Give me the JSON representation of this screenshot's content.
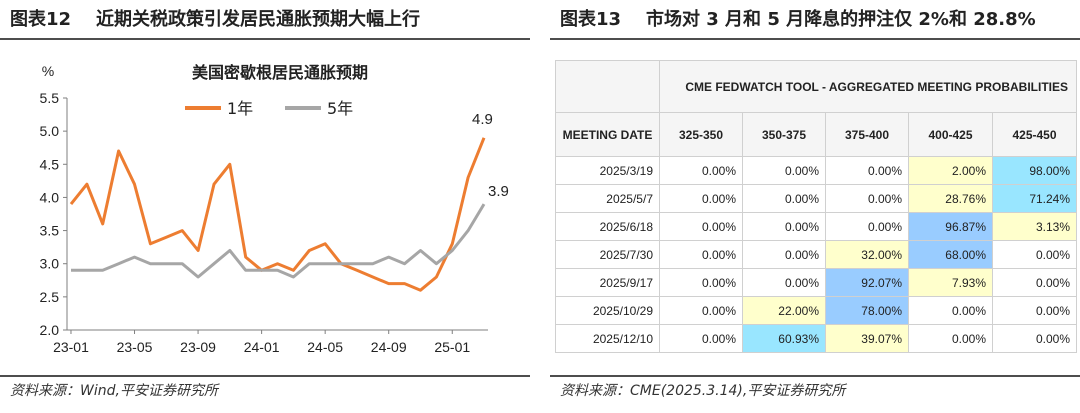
{
  "left": {
    "figure_no": "图表12",
    "title": "近期关税政策引发居民通胀预期大幅上行",
    "source": "资料来源：Wind,平安证券研究所"
  },
  "right": {
    "figure_no": "图表13",
    "title": "市场对 3 月和 5 月降息的押注仅 2%和 28.8%",
    "source": "资料来源：CME(2025.3.14),平安证券研究所",
    "table": {
      "banner": "CME FEDWATCH TOOL - AGGREGATED MEETING PROBABILITIES",
      "headers": [
        "MEETING DATE",
        "325-350",
        "350-375",
        "375-400",
        "400-425",
        "425-450"
      ],
      "rows": [
        {
          "date": "2025/3/19",
          "values": [
            "0.00%",
            "0.00%",
            "0.00%",
            "2.00%",
            "98.00%"
          ],
          "colors": [
            "none",
            "none",
            "none",
            "y",
            "c"
          ]
        },
        {
          "date": "2025/5/7",
          "values": [
            "0.00%",
            "0.00%",
            "0.00%",
            "28.76%",
            "71.24%"
          ],
          "colors": [
            "none",
            "none",
            "none",
            "y",
            "c"
          ]
        },
        {
          "date": "2025/6/18",
          "values": [
            "0.00%",
            "0.00%",
            "0.00%",
            "96.87%",
            "3.13%"
          ],
          "colors": [
            "none",
            "none",
            "none",
            "b",
            "y"
          ]
        },
        {
          "date": "2025/7/30",
          "values": [
            "0.00%",
            "0.00%",
            "32.00%",
            "68.00%",
            "0.00%"
          ],
          "colors": [
            "none",
            "none",
            "y",
            "b",
            "none"
          ]
        },
        {
          "date": "2025/9/17",
          "values": [
            "0.00%",
            "0.00%",
            "92.07%",
            "7.93%",
            "0.00%"
          ],
          "colors": [
            "none",
            "none",
            "b",
            "y",
            "none"
          ]
        },
        {
          "date": "2025/10/29",
          "values": [
            "0.00%",
            "22.00%",
            "78.00%",
            "0.00%",
            "0.00%"
          ],
          "colors": [
            "none",
            "y",
            "b",
            "none",
            "none"
          ]
        },
        {
          "date": "2025/12/10",
          "values": [
            "0.00%",
            "60.93%",
            "39.07%",
            "0.00%",
            "0.00%"
          ],
          "colors": [
            "none",
            "c",
            "y",
            "none",
            "none"
          ]
        }
      ]
    }
  },
  "chart_data": {
    "type": "line",
    "title": "美国密歇根居民通胀预期",
    "ylabel": "%",
    "xlabel": "",
    "ylim": [
      2.0,
      5.5
    ],
    "yticks": [
      "2.0",
      "2.5",
      "3.0",
      "3.5",
      "4.0",
      "4.5",
      "5.0",
      "5.5"
    ],
    "xtick_labels": [
      "23-01",
      "23-05",
      "23-09",
      "24-01",
      "24-05",
      "24-09",
      "25-01"
    ],
    "x": [
      "23-01",
      "23-02",
      "23-03",
      "23-04",
      "23-05",
      "23-06",
      "23-07",
      "23-08",
      "23-09",
      "23-10",
      "23-11",
      "23-12",
      "24-01",
      "24-02",
      "24-03",
      "24-04",
      "24-05",
      "24-06",
      "24-07",
      "24-08",
      "24-09",
      "24-10",
      "24-11",
      "24-12",
      "25-01",
      "25-02",
      "25-03"
    ],
    "legend_placement": "top-center",
    "grid": false,
    "series": [
      {
        "name": "1年",
        "color": "#ed7d31",
        "values": [
          3.9,
          4.2,
          3.6,
          4.7,
          4.2,
          3.3,
          3.4,
          3.5,
          3.2,
          4.2,
          4.5,
          3.1,
          2.9,
          3.0,
          2.9,
          3.2,
          3.3,
          3.0,
          2.9,
          2.8,
          2.7,
          2.7,
          2.6,
          2.8,
          3.3,
          4.3,
          4.9
        ],
        "end_label": "4.9"
      },
      {
        "name": "5年",
        "color": "#a6a6a6",
        "values": [
          2.9,
          2.9,
          2.9,
          3.0,
          3.1,
          3.0,
          3.0,
          3.0,
          2.8,
          3.0,
          3.2,
          2.9,
          2.9,
          2.9,
          2.8,
          3.0,
          3.0,
          3.0,
          3.0,
          3.0,
          3.1,
          3.0,
          3.2,
          3.0,
          3.2,
          3.5,
          3.9
        ],
        "end_label": "3.9"
      }
    ]
  }
}
